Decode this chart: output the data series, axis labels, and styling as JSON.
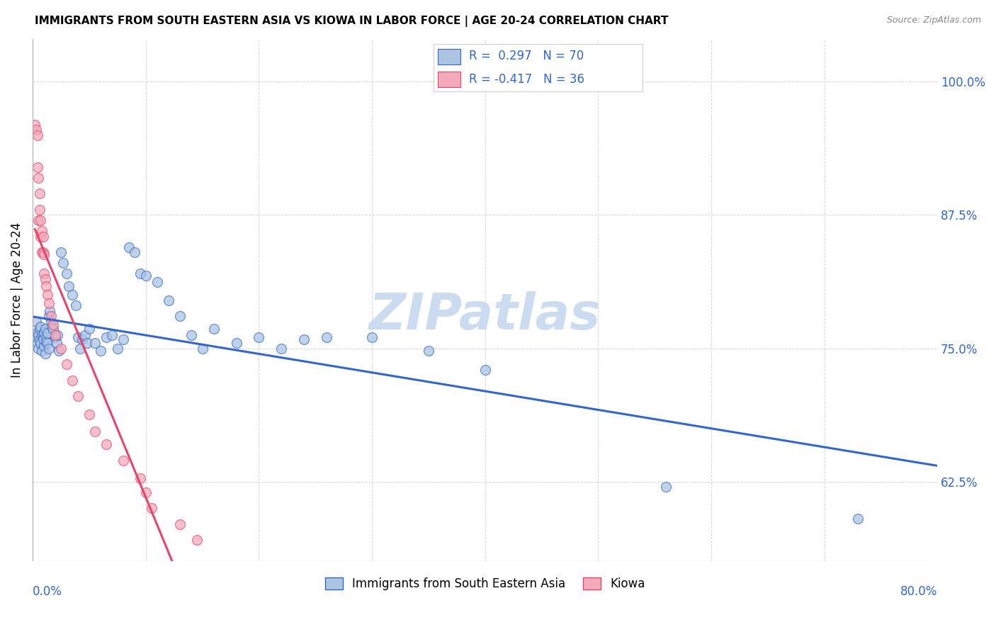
{
  "title": "IMMIGRANTS FROM SOUTH EASTERN ASIA VS KIOWA IN LABOR FORCE | AGE 20-24 CORRELATION CHART",
  "source": "Source: ZipAtlas.com",
  "ylabel": "In Labor Force | Age 20-24",
  "ylabel_ticks": [
    "62.5%",
    "75.0%",
    "87.5%",
    "100.0%"
  ],
  "ylabel_tick_vals": [
    0.625,
    0.75,
    0.875,
    1.0
  ],
  "xlim": [
    0.0,
    0.8
  ],
  "ylim": [
    0.55,
    1.04
  ],
  "blue_R": 0.297,
  "blue_N": 70,
  "pink_R": -0.417,
  "pink_N": 36,
  "legend_label_blue": "Immigrants from South Eastern Asia",
  "legend_label_pink": "Kiowa",
  "blue_color": "#aac4e2",
  "pink_color": "#f4aabb",
  "blue_line_color": "#3366cc",
  "pink_line_color": "#e8446a",
  "blue_scatter": [
    [
      0.002,
      0.76
    ],
    [
      0.003,
      0.775
    ],
    [
      0.004,
      0.765
    ],
    [
      0.004,
      0.755
    ],
    [
      0.005,
      0.762
    ],
    [
      0.005,
      0.75
    ],
    [
      0.006,
      0.768
    ],
    [
      0.006,
      0.758
    ],
    [
      0.007,
      0.77
    ],
    [
      0.007,
      0.755
    ],
    [
      0.008,
      0.762
    ],
    [
      0.008,
      0.748
    ],
    [
      0.009,
      0.76
    ],
    [
      0.009,
      0.758
    ],
    [
      0.01,
      0.765
    ],
    [
      0.01,
      0.752
    ],
    [
      0.011,
      0.768
    ],
    [
      0.011,
      0.745
    ],
    [
      0.012,
      0.76
    ],
    [
      0.012,
      0.756
    ],
    [
      0.013,
      0.764
    ],
    [
      0.013,
      0.755
    ],
    [
      0.014,
      0.78
    ],
    [
      0.014,
      0.75
    ],
    [
      0.015,
      0.785
    ],
    [
      0.016,
      0.775
    ],
    [
      0.017,
      0.77
    ],
    [
      0.018,
      0.768
    ],
    [
      0.02,
      0.76
    ],
    [
      0.021,
      0.755
    ],
    [
      0.022,
      0.762
    ],
    [
      0.023,
      0.748
    ],
    [
      0.025,
      0.84
    ],
    [
      0.027,
      0.83
    ],
    [
      0.03,
      0.82
    ],
    [
      0.032,
      0.808
    ],
    [
      0.035,
      0.8
    ],
    [
      0.038,
      0.79
    ],
    [
      0.04,
      0.76
    ],
    [
      0.042,
      0.75
    ],
    [
      0.044,
      0.758
    ],
    [
      0.046,
      0.762
    ],
    [
      0.048,
      0.755
    ],
    [
      0.05,
      0.768
    ],
    [
      0.055,
      0.755
    ],
    [
      0.06,
      0.748
    ],
    [
      0.065,
      0.76
    ],
    [
      0.07,
      0.762
    ],
    [
      0.075,
      0.75
    ],
    [
      0.08,
      0.758
    ],
    [
      0.085,
      0.845
    ],
    [
      0.09,
      0.84
    ],
    [
      0.095,
      0.82
    ],
    [
      0.1,
      0.818
    ],
    [
      0.11,
      0.812
    ],
    [
      0.12,
      0.795
    ],
    [
      0.13,
      0.78
    ],
    [
      0.14,
      0.762
    ],
    [
      0.15,
      0.75
    ],
    [
      0.16,
      0.768
    ],
    [
      0.18,
      0.755
    ],
    [
      0.2,
      0.76
    ],
    [
      0.22,
      0.75
    ],
    [
      0.24,
      0.758
    ],
    [
      0.26,
      0.76
    ],
    [
      0.3,
      0.76
    ],
    [
      0.35,
      0.748
    ],
    [
      0.4,
      0.73
    ],
    [
      0.56,
      0.62
    ],
    [
      0.73,
      0.59
    ]
  ],
  "pink_scatter": [
    [
      0.002,
      0.96
    ],
    [
      0.003,
      0.955
    ],
    [
      0.004,
      0.95
    ],
    [
      0.004,
      0.92
    ],
    [
      0.005,
      0.91
    ],
    [
      0.005,
      0.87
    ],
    [
      0.006,
      0.895
    ],
    [
      0.006,
      0.88
    ],
    [
      0.007,
      0.87
    ],
    [
      0.007,
      0.855
    ],
    [
      0.008,
      0.86
    ],
    [
      0.008,
      0.84
    ],
    [
      0.009,
      0.855
    ],
    [
      0.009,
      0.84
    ],
    [
      0.01,
      0.838
    ],
    [
      0.01,
      0.82
    ],
    [
      0.011,
      0.815
    ],
    [
      0.012,
      0.808
    ],
    [
      0.013,
      0.8
    ],
    [
      0.014,
      0.792
    ],
    [
      0.016,
      0.78
    ],
    [
      0.018,
      0.772
    ],
    [
      0.02,
      0.762
    ],
    [
      0.025,
      0.75
    ],
    [
      0.03,
      0.735
    ],
    [
      0.035,
      0.72
    ],
    [
      0.04,
      0.705
    ],
    [
      0.05,
      0.688
    ],
    [
      0.055,
      0.672
    ],
    [
      0.065,
      0.66
    ],
    [
      0.08,
      0.645
    ],
    [
      0.095,
      0.628
    ],
    [
      0.1,
      0.615
    ],
    [
      0.105,
      0.6
    ],
    [
      0.13,
      0.585
    ],
    [
      0.145,
      0.57
    ]
  ],
  "watermark_text": "ZIPatlas",
  "watermark_color": "#ccdcf0"
}
